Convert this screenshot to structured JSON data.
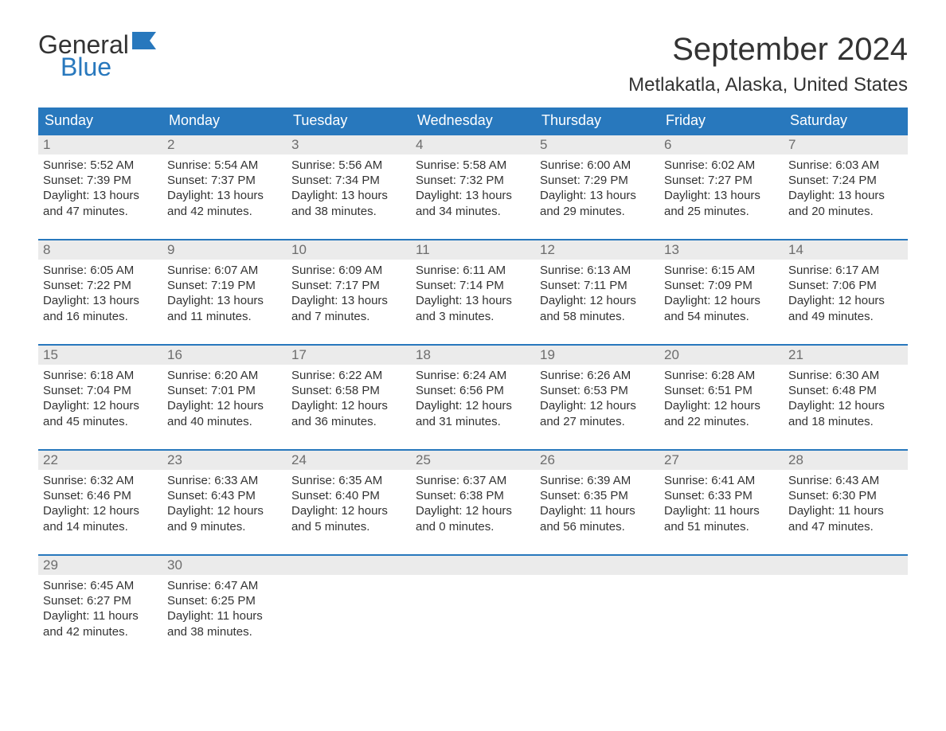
{
  "logo": {
    "word1": "General",
    "word2": "Blue"
  },
  "title": "September 2024",
  "location": "Metlakatla, Alaska, United States",
  "colors": {
    "header_bg": "#2878bd",
    "header_text": "#ffffff",
    "day_header_bg": "#ebebeb",
    "day_header_border": "#2878bd",
    "day_number": "#6d6d6d",
    "body_text": "#333333",
    "page_bg": "#ffffff",
    "logo_blue": "#2878bd"
  },
  "weekdays": [
    "Sunday",
    "Monday",
    "Tuesday",
    "Wednesday",
    "Thursday",
    "Friday",
    "Saturday"
  ],
  "weeks": [
    [
      {
        "num": "1",
        "sunrise": "Sunrise: 5:52 AM",
        "sunset": "Sunset: 7:39 PM",
        "day1": "Daylight: 13 hours",
        "day2": "and 47 minutes."
      },
      {
        "num": "2",
        "sunrise": "Sunrise: 5:54 AM",
        "sunset": "Sunset: 7:37 PM",
        "day1": "Daylight: 13 hours",
        "day2": "and 42 minutes."
      },
      {
        "num": "3",
        "sunrise": "Sunrise: 5:56 AM",
        "sunset": "Sunset: 7:34 PM",
        "day1": "Daylight: 13 hours",
        "day2": "and 38 minutes."
      },
      {
        "num": "4",
        "sunrise": "Sunrise: 5:58 AM",
        "sunset": "Sunset: 7:32 PM",
        "day1": "Daylight: 13 hours",
        "day2": "and 34 minutes."
      },
      {
        "num": "5",
        "sunrise": "Sunrise: 6:00 AM",
        "sunset": "Sunset: 7:29 PM",
        "day1": "Daylight: 13 hours",
        "day2": "and 29 minutes."
      },
      {
        "num": "6",
        "sunrise": "Sunrise: 6:02 AM",
        "sunset": "Sunset: 7:27 PM",
        "day1": "Daylight: 13 hours",
        "day2": "and 25 minutes."
      },
      {
        "num": "7",
        "sunrise": "Sunrise: 6:03 AM",
        "sunset": "Sunset: 7:24 PM",
        "day1": "Daylight: 13 hours",
        "day2": "and 20 minutes."
      }
    ],
    [
      {
        "num": "8",
        "sunrise": "Sunrise: 6:05 AM",
        "sunset": "Sunset: 7:22 PM",
        "day1": "Daylight: 13 hours",
        "day2": "and 16 minutes."
      },
      {
        "num": "9",
        "sunrise": "Sunrise: 6:07 AM",
        "sunset": "Sunset: 7:19 PM",
        "day1": "Daylight: 13 hours",
        "day2": "and 11 minutes."
      },
      {
        "num": "10",
        "sunrise": "Sunrise: 6:09 AM",
        "sunset": "Sunset: 7:17 PM",
        "day1": "Daylight: 13 hours",
        "day2": "and 7 minutes."
      },
      {
        "num": "11",
        "sunrise": "Sunrise: 6:11 AM",
        "sunset": "Sunset: 7:14 PM",
        "day1": "Daylight: 13 hours",
        "day2": "and 3 minutes."
      },
      {
        "num": "12",
        "sunrise": "Sunrise: 6:13 AM",
        "sunset": "Sunset: 7:11 PM",
        "day1": "Daylight: 12 hours",
        "day2": "and 58 minutes."
      },
      {
        "num": "13",
        "sunrise": "Sunrise: 6:15 AM",
        "sunset": "Sunset: 7:09 PM",
        "day1": "Daylight: 12 hours",
        "day2": "and 54 minutes."
      },
      {
        "num": "14",
        "sunrise": "Sunrise: 6:17 AM",
        "sunset": "Sunset: 7:06 PM",
        "day1": "Daylight: 12 hours",
        "day2": "and 49 minutes."
      }
    ],
    [
      {
        "num": "15",
        "sunrise": "Sunrise: 6:18 AM",
        "sunset": "Sunset: 7:04 PM",
        "day1": "Daylight: 12 hours",
        "day2": "and 45 minutes."
      },
      {
        "num": "16",
        "sunrise": "Sunrise: 6:20 AM",
        "sunset": "Sunset: 7:01 PM",
        "day1": "Daylight: 12 hours",
        "day2": "and 40 minutes."
      },
      {
        "num": "17",
        "sunrise": "Sunrise: 6:22 AM",
        "sunset": "Sunset: 6:58 PM",
        "day1": "Daylight: 12 hours",
        "day2": "and 36 minutes."
      },
      {
        "num": "18",
        "sunrise": "Sunrise: 6:24 AM",
        "sunset": "Sunset: 6:56 PM",
        "day1": "Daylight: 12 hours",
        "day2": "and 31 minutes."
      },
      {
        "num": "19",
        "sunrise": "Sunrise: 6:26 AM",
        "sunset": "Sunset: 6:53 PM",
        "day1": "Daylight: 12 hours",
        "day2": "and 27 minutes."
      },
      {
        "num": "20",
        "sunrise": "Sunrise: 6:28 AM",
        "sunset": "Sunset: 6:51 PM",
        "day1": "Daylight: 12 hours",
        "day2": "and 22 minutes."
      },
      {
        "num": "21",
        "sunrise": "Sunrise: 6:30 AM",
        "sunset": "Sunset: 6:48 PM",
        "day1": "Daylight: 12 hours",
        "day2": "and 18 minutes."
      }
    ],
    [
      {
        "num": "22",
        "sunrise": "Sunrise: 6:32 AM",
        "sunset": "Sunset: 6:46 PM",
        "day1": "Daylight: 12 hours",
        "day2": "and 14 minutes."
      },
      {
        "num": "23",
        "sunrise": "Sunrise: 6:33 AM",
        "sunset": "Sunset: 6:43 PM",
        "day1": "Daylight: 12 hours",
        "day2": "and 9 minutes."
      },
      {
        "num": "24",
        "sunrise": "Sunrise: 6:35 AM",
        "sunset": "Sunset: 6:40 PM",
        "day1": "Daylight: 12 hours",
        "day2": "and 5 minutes."
      },
      {
        "num": "25",
        "sunrise": "Sunrise: 6:37 AM",
        "sunset": "Sunset: 6:38 PM",
        "day1": "Daylight: 12 hours",
        "day2": "and 0 minutes."
      },
      {
        "num": "26",
        "sunrise": "Sunrise: 6:39 AM",
        "sunset": "Sunset: 6:35 PM",
        "day1": "Daylight: 11 hours",
        "day2": "and 56 minutes."
      },
      {
        "num": "27",
        "sunrise": "Sunrise: 6:41 AM",
        "sunset": "Sunset: 6:33 PM",
        "day1": "Daylight: 11 hours",
        "day2": "and 51 minutes."
      },
      {
        "num": "28",
        "sunrise": "Sunrise: 6:43 AM",
        "sunset": "Sunset: 6:30 PM",
        "day1": "Daylight: 11 hours",
        "day2": "and 47 minutes."
      }
    ],
    [
      {
        "num": "29",
        "sunrise": "Sunrise: 6:45 AM",
        "sunset": "Sunset: 6:27 PM",
        "day1": "Daylight: 11 hours",
        "day2": "and 42 minutes."
      },
      {
        "num": "30",
        "sunrise": "Sunrise: 6:47 AM",
        "sunset": "Sunset: 6:25 PM",
        "day1": "Daylight: 11 hours",
        "day2": "and 38 minutes."
      },
      null,
      null,
      null,
      null,
      null
    ]
  ]
}
